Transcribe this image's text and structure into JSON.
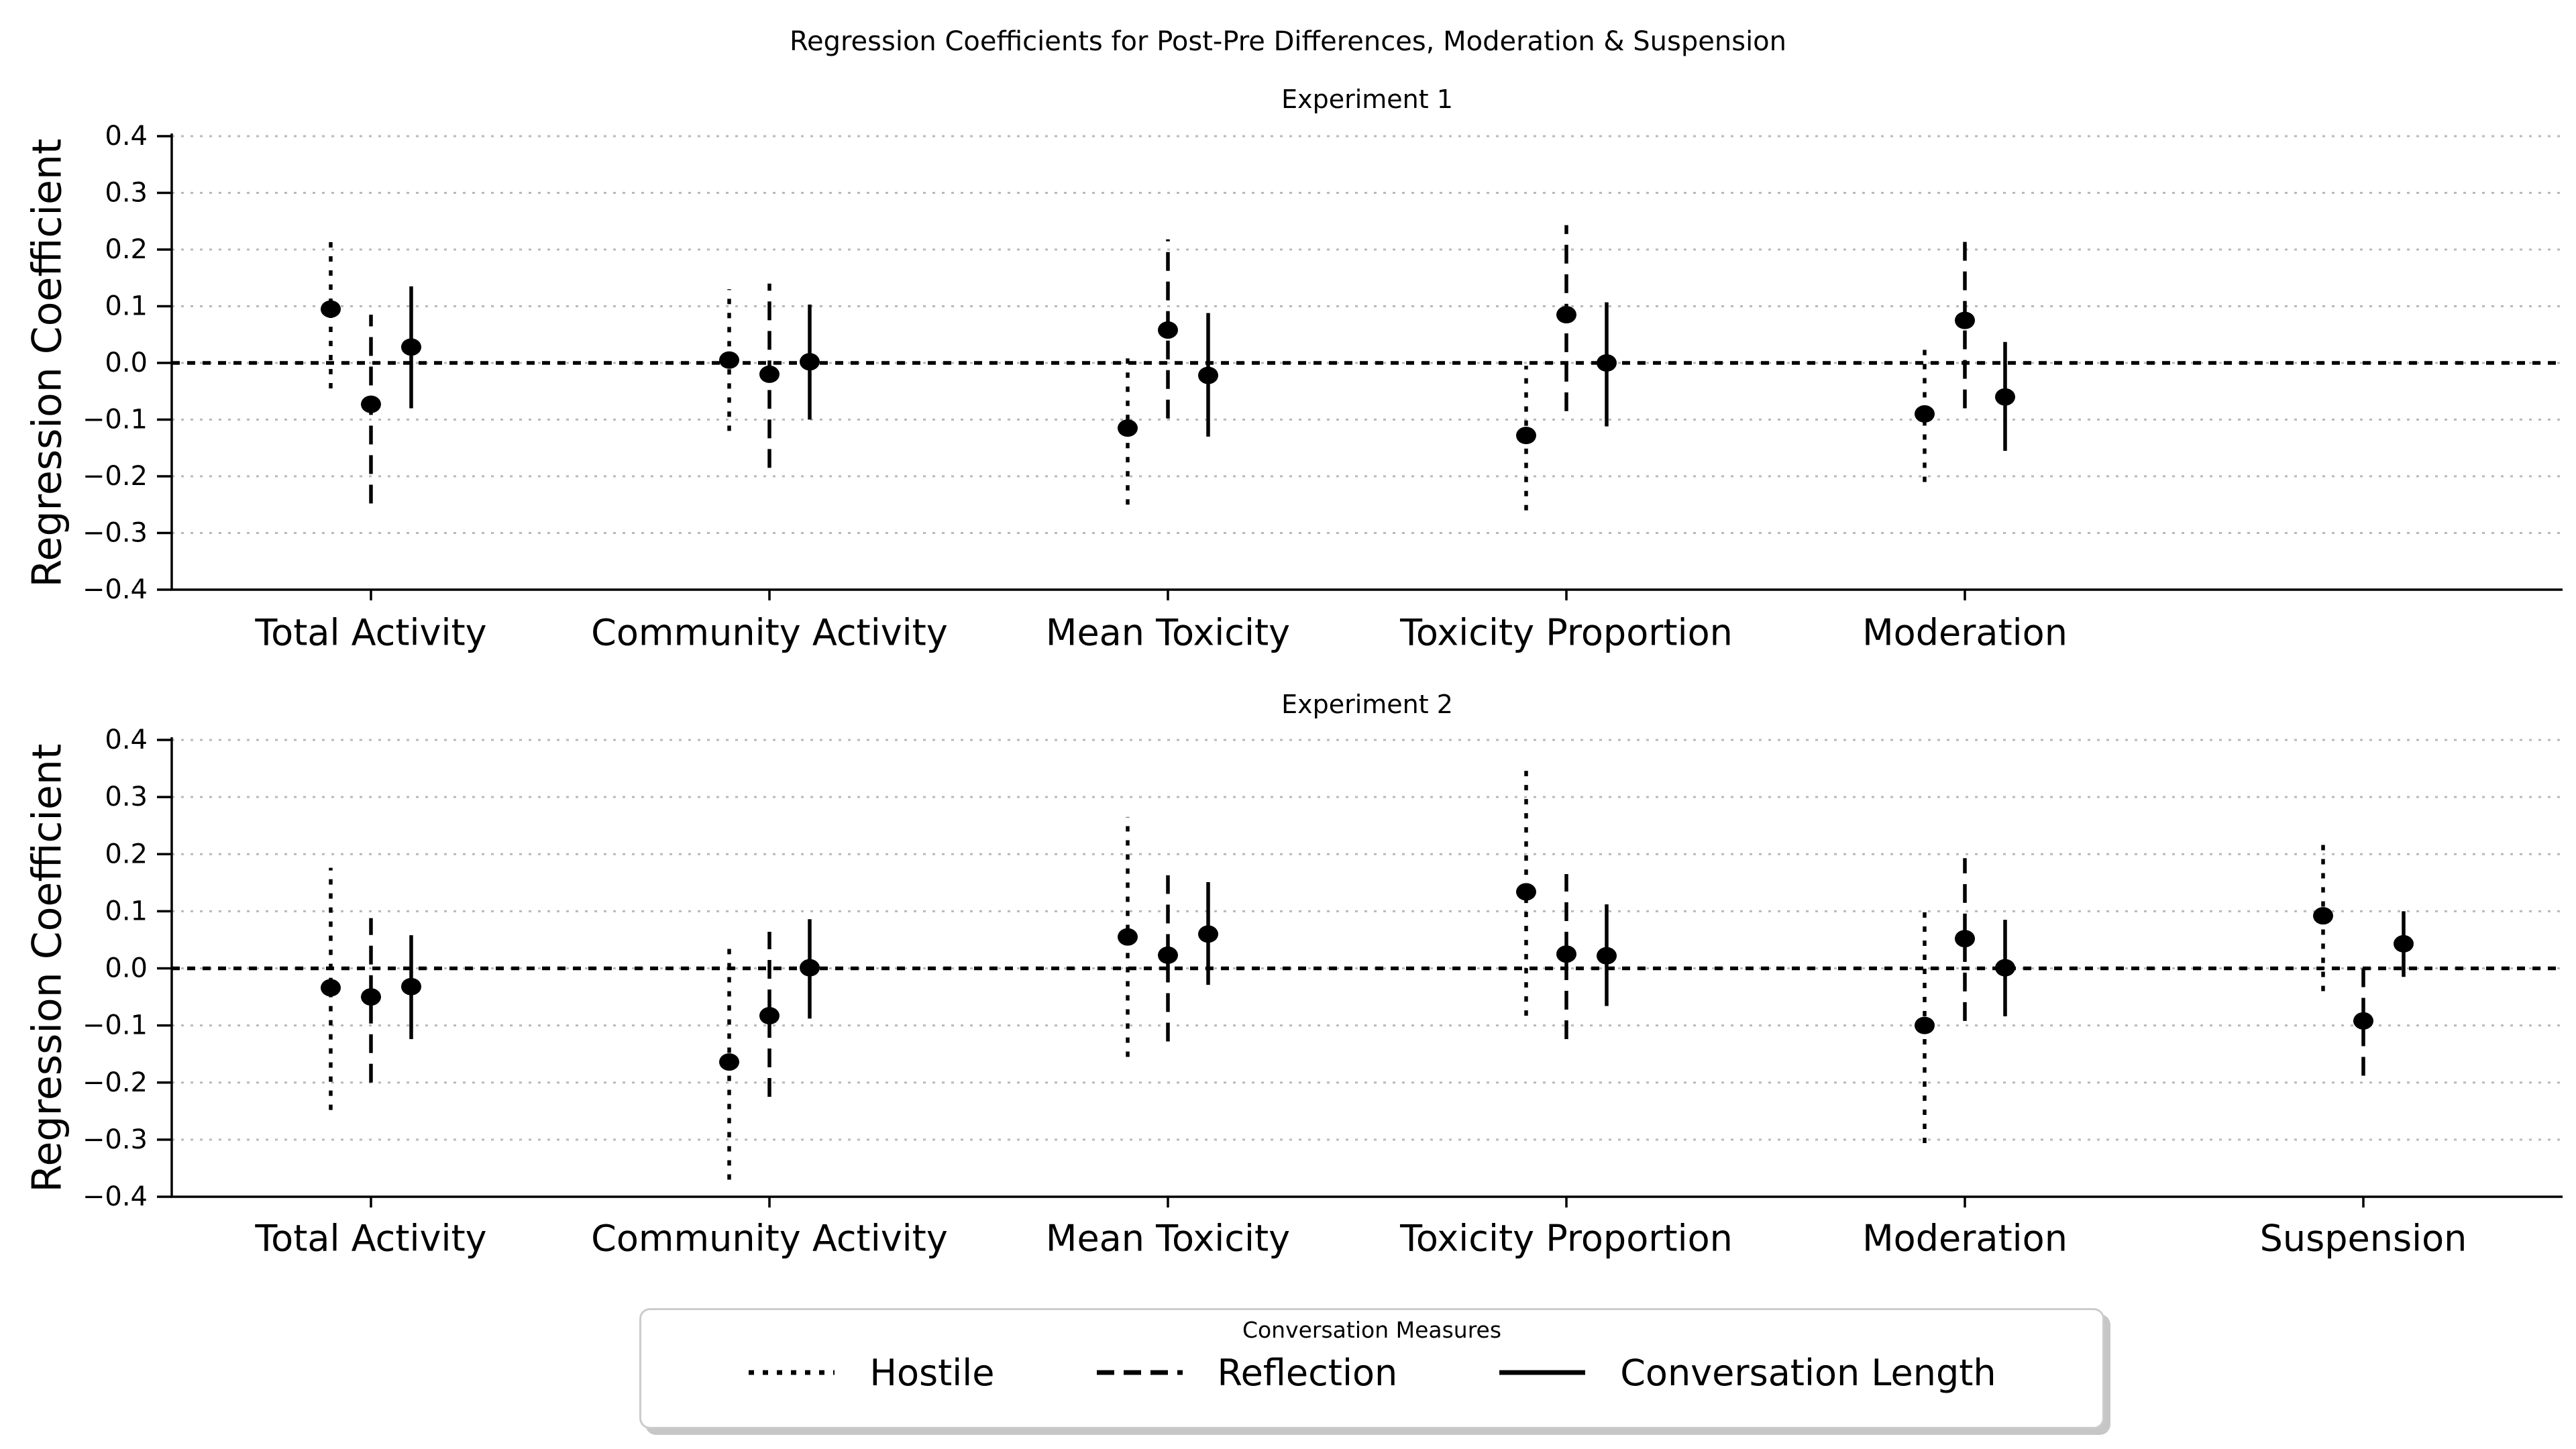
{
  "figure_title": "Regression Coefficients for Post-Pre Differences, Moderation & Suspension",
  "legend": {
    "title": "Conversation Measures",
    "entries": [
      {
        "label": "Hostile",
        "linestyle": "dotted"
      },
      {
        "label": "Reflection",
        "linestyle": "dashed"
      },
      {
        "label": "Conversation Length",
        "linestyle": "solid"
      }
    ]
  },
  "colors": {
    "series": "#000000",
    "grid": "#b9b9b9",
    "zero_line": "#000000",
    "axis": "#000000",
    "legend_border": "#cccccc",
    "legend_shadow": "#c6c6c6"
  },
  "chart_data": [
    {
      "type": "scatter",
      "title": "Experiment 1",
      "ylabel": "Regression Coefficient",
      "ylim": [
        -0.4,
        0.4
      ],
      "ytick_step": 0.1,
      "grid": true,
      "zero_line": true,
      "x_slots": 6,
      "categories": [
        "Total Activity",
        "Community Activity",
        "Mean Toxicity",
        "Toxicity Proportion",
        "Moderation"
      ],
      "series": [
        {
          "name": "Hostile",
          "linestyle": "dotted",
          "points": [
            {
              "est": 0.095,
              "lo": -0.045,
              "hi": 0.215
            },
            {
              "est": 0.005,
              "lo": -0.12,
              "hi": 0.13
            },
            {
              "est": -0.115,
              "lo": -0.25,
              "hi": 0.01
            },
            {
              "est": -0.128,
              "lo": -0.26,
              "hi": -0.005
            },
            {
              "est": -0.09,
              "lo": -0.21,
              "hi": 0.028
            }
          ]
        },
        {
          "name": "Reflection",
          "linestyle": "dashed",
          "points": [
            {
              "est": -0.073,
              "lo": -0.248,
              "hi": 0.085
            },
            {
              "est": -0.02,
              "lo": -0.185,
              "hi": 0.14
            },
            {
              "est": 0.058,
              "lo": -0.098,
              "hi": 0.218
            },
            {
              "est": 0.085,
              "lo": -0.085,
              "hi": 0.243
            },
            {
              "est": 0.075,
              "lo": -0.08,
              "hi": 0.23
            }
          ]
        },
        {
          "name": "Conversation Length",
          "linestyle": "solid",
          "points": [
            {
              "est": 0.028,
              "lo": -0.08,
              "hi": 0.135
            },
            {
              "est": 0.002,
              "lo": -0.1,
              "hi": 0.103
            },
            {
              "est": -0.022,
              "lo": -0.13,
              "hi": 0.088
            },
            {
              "est": 0.0,
              "lo": -0.112,
              "hi": 0.107
            },
            {
              "est": -0.06,
              "lo": -0.155,
              "hi": 0.037
            }
          ]
        }
      ]
    },
    {
      "type": "scatter",
      "title": "Experiment 2",
      "ylabel": "Regression Coefficient",
      "ylim": [
        -0.4,
        0.4
      ],
      "ytick_step": 0.1,
      "grid": true,
      "zero_line": true,
      "x_slots": 6,
      "categories": [
        "Total Activity",
        "Community Activity",
        "Mean Toxicity",
        "Toxicity Proportion",
        "Moderation",
        "Suspension"
      ],
      "series": [
        {
          "name": "Hostile",
          "linestyle": "dotted",
          "points": [
            {
              "est": -0.034,
              "lo": -0.248,
              "hi": 0.176
            },
            {
              "est": -0.164,
              "lo": -0.37,
              "hi": 0.04
            },
            {
              "est": 0.055,
              "lo": -0.155,
              "hi": 0.265
            },
            {
              "est": 0.134,
              "lo": -0.083,
              "hi": 0.347
            },
            {
              "est": -0.1,
              "lo": -0.306,
              "hi": 0.1
            },
            {
              "est": 0.092,
              "lo": -0.04,
              "hi": 0.228
            }
          ]
        },
        {
          "name": "Reflection",
          "linestyle": "dashed",
          "points": [
            {
              "est": -0.05,
              "lo": -0.2,
              "hi": 0.088
            },
            {
              "est": -0.083,
              "lo": -0.225,
              "hi": 0.064
            },
            {
              "est": 0.023,
              "lo": -0.128,
              "hi": 0.163
            },
            {
              "est": 0.025,
              "lo": -0.124,
              "hi": 0.165
            },
            {
              "est": 0.052,
              "lo": -0.092,
              "hi": 0.193
            },
            {
              "est": -0.092,
              "lo": -0.188,
              "hi": 0.002
            }
          ]
        },
        {
          "name": "Conversation Length",
          "linestyle": "solid",
          "points": [
            {
              "est": -0.032,
              "lo": -0.124,
              "hi": 0.058
            },
            {
              "est": 0.001,
              "lo": -0.088,
              "hi": 0.086
            },
            {
              "est": 0.06,
              "lo": -0.029,
              "hi": 0.151
            },
            {
              "est": 0.022,
              "lo": -0.066,
              "hi": 0.112
            },
            {
              "est": 0.001,
              "lo": -0.084,
              "hi": 0.085
            },
            {
              "est": 0.043,
              "lo": -0.015,
              "hi": 0.1
            }
          ]
        }
      ]
    }
  ]
}
